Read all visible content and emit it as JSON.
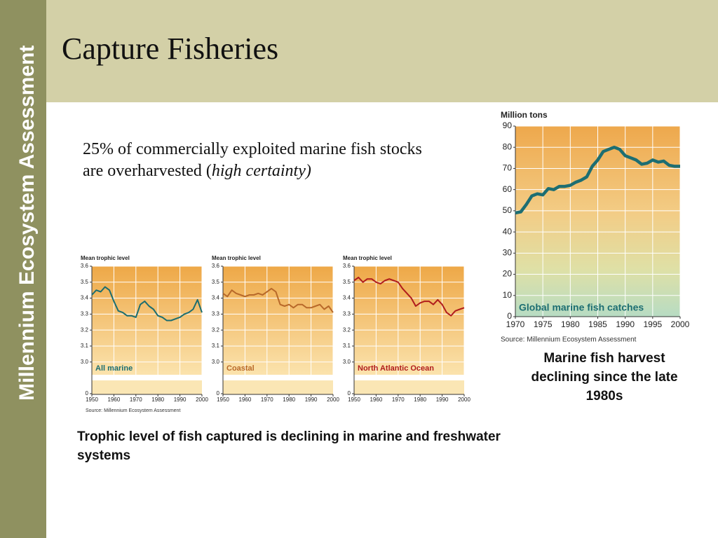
{
  "sidebar": "Millennium Ecosystem Assessment",
  "title": "Capture Fisheries",
  "statement": {
    "text": "25% of commercially exploited marine fish stocks are overharvested (",
    "emphasis": "high certainty)"
  },
  "trophic_caption": "Trophic level of fish captured is declining in marine and freshwater systems",
  "harvest_caption": "Marine fish harvest declining since the late 1980s",
  "chart_data": [
    {
      "type": "line",
      "y_label": "Mean trophic level",
      "source": "Source: Millennium Ecosystem Assessment",
      "x": [
        1950,
        1952,
        1954,
        1956,
        1958,
        1960,
        1962,
        1964,
        1966,
        1968,
        1970,
        1972,
        1974,
        1976,
        1978,
        1980,
        1982,
        1984,
        1986,
        1988,
        1990,
        1992,
        1994,
        1996,
        1998,
        2000
      ],
      "series": [
        {
          "name": "All marine",
          "color": "#1b6d70",
          "values": [
            3.42,
            3.45,
            3.44,
            3.47,
            3.45,
            3.38,
            3.32,
            3.31,
            3.29,
            3.29,
            3.28,
            3.36,
            3.38,
            3.35,
            3.33,
            3.29,
            3.28,
            3.26,
            3.26,
            3.27,
            3.28,
            3.3,
            3.31,
            3.33,
            3.39,
            3.31
          ]
        }
      ],
      "xlim": [
        1950,
        2000
      ],
      "xticks": [
        1950,
        1960,
        1970,
        1980,
        1990,
        2000
      ],
      "ylim": [
        2.92,
        3.6
      ],
      "yticks": [
        0,
        {
          "value": 3,
          "label": "3.0"
        },
        3.1,
        3.2,
        3.3,
        3.4,
        3.5,
        3.6
      ],
      "grid": true
    },
    {
      "type": "line",
      "y_label": "Mean trophic level",
      "x": [
        1950,
        1952,
        1954,
        1956,
        1958,
        1960,
        1962,
        1964,
        1966,
        1968,
        1970,
        1972,
        1974,
        1976,
        1978,
        1980,
        1982,
        1984,
        1986,
        1988,
        1990,
        1992,
        1994,
        1996,
        1998,
        2000
      ],
      "series": [
        {
          "name": "Coastal",
          "color": "#b8692a",
          "values": [
            3.43,
            3.41,
            3.45,
            3.43,
            3.42,
            3.41,
            3.42,
            3.42,
            3.43,
            3.42,
            3.44,
            3.46,
            3.44,
            3.36,
            3.35,
            3.36,
            3.34,
            3.36,
            3.36,
            3.34,
            3.34,
            3.35,
            3.36,
            3.33,
            3.35,
            3.31
          ]
        }
      ],
      "xlim": [
        1950,
        2000
      ],
      "xticks": [
        1950,
        1960,
        1970,
        1980,
        1990,
        2000
      ],
      "ylim": [
        2.92,
        3.6
      ],
      "yticks": [
        0,
        {
          "value": 3,
          "label": "3.0"
        },
        3.1,
        3.2,
        3.3,
        3.4,
        3.5,
        3.6
      ],
      "grid": true
    },
    {
      "type": "line",
      "y_label": "Mean trophic level",
      "x": [
        1950,
        1952,
        1954,
        1956,
        1958,
        1960,
        1962,
        1964,
        1966,
        1968,
        1970,
        1972,
        1974,
        1976,
        1978,
        1980,
        1982,
        1984,
        1986,
        1988,
        1990,
        1992,
        1994,
        1996,
        1998,
        2000
      ],
      "series": [
        {
          "name": "North Atlantic Ocean",
          "color": "#b01c1c",
          "values": [
            3.51,
            3.53,
            3.5,
            3.52,
            3.52,
            3.5,
            3.49,
            3.51,
            3.52,
            3.51,
            3.5,
            3.46,
            3.43,
            3.4,
            3.35,
            3.37,
            3.38,
            3.38,
            3.36,
            3.39,
            3.36,
            3.31,
            3.29,
            3.32,
            3.33,
            3.34
          ]
        }
      ],
      "xlim": [
        1950,
        2000
      ],
      "xticks": [
        1950,
        1960,
        1970,
        1980,
        1990,
        2000
      ],
      "ylim": [
        2.92,
        3.6
      ],
      "yticks": [
        0,
        {
          "value": 3,
          "label": "3.0"
        },
        3.1,
        3.2,
        3.3,
        3.4,
        3.5,
        3.6
      ],
      "grid": true
    },
    {
      "type": "line",
      "y_label": "Million tons",
      "source": "Source: Millennium Ecosystem Assessment",
      "x": [
        1970,
        1971,
        1972,
        1973,
        1974,
        1975,
        1976,
        1977,
        1978,
        1979,
        1980,
        1981,
        1982,
        1983,
        1984,
        1985,
        1986,
        1987,
        1988,
        1989,
        1990,
        1991,
        1992,
        1993,
        1994,
        1995,
        1996,
        1997,
        1998,
        1999,
        2000
      ],
      "series": [
        {
          "name": "Global marine fish catches",
          "color": "#1d6e72",
          "values": [
            49,
            49.5,
            53,
            57,
            58,
            57.5,
            60.5,
            60,
            61.5,
            61.5,
            62,
            63.5,
            64.5,
            66,
            71,
            74,
            78,
            79,
            80,
            79,
            76,
            75,
            74,
            72,
            72.5,
            74,
            73,
            73.5,
            71.5,
            71,
            71
          ]
        }
      ],
      "xlim": [
        1970,
        2000
      ],
      "xticks": [
        1970,
        1975,
        1980,
        1985,
        1990,
        1995,
        2000
      ],
      "ylim": [
        0,
        90
      ],
      "yticks": [
        0,
        10,
        20,
        30,
        40,
        50,
        60,
        70,
        80,
        90
      ],
      "grid": true
    }
  ]
}
